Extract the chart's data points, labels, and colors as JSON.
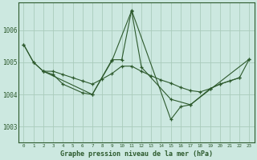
{
  "x": [
    0,
    1,
    2,
    3,
    4,
    5,
    6,
    7,
    8,
    9,
    10,
    11,
    12,
    13,
    14,
    15,
    16,
    17,
    18,
    19,
    20,
    21,
    22,
    23
  ],
  "line1_y": [
    1005.55,
    1005.0,
    1004.72,
    1004.72,
    1004.62,
    1004.52,
    1004.42,
    1004.32,
    1004.48,
    1004.65,
    1004.88,
    1004.88,
    1004.72,
    1004.58,
    1004.45,
    1004.35,
    1004.22,
    1004.12,
    1004.08,
    1004.18,
    1004.32,
    1004.42,
    1004.52,
    1005.1
  ],
  "line2_x": [
    0,
    1,
    2,
    3,
    4,
    6,
    7,
    9,
    11,
    12,
    15,
    17,
    23
  ],
  "line2_y": [
    1005.55,
    1005.0,
    1004.72,
    1004.62,
    1004.32,
    1004.05,
    1004.0,
    1005.05,
    1006.6,
    1004.85,
    1003.85,
    1003.68,
    1005.1
  ],
  "line3_x": [
    2,
    7,
    9,
    10,
    11,
    15,
    16,
    17,
    19,
    20,
    22
  ],
  "line3_y": [
    1004.72,
    1004.0,
    1005.08,
    1005.08,
    1006.62,
    1003.22,
    1003.62,
    1003.68,
    1004.18,
    1004.32,
    1004.52
  ],
  "bg_color": "#cce8e0",
  "grid_color": "#aaccbb",
  "line_color": "#2d5a2d",
  "title": "Graphe pression niveau de la mer (hPa)",
  "ylim_min": 1002.5,
  "ylim_max": 1006.85,
  "yticks": [
    1003,
    1004,
    1005,
    1006
  ],
  "xtick_labels": [
    "0",
    "1",
    "2",
    "3",
    "4",
    "5",
    "6",
    "7",
    "8",
    "9",
    "10",
    "11",
    "12",
    "13",
    "14",
    "15",
    "16",
    "17",
    "18",
    "19",
    "20",
    "21",
    "22",
    "23"
  ]
}
